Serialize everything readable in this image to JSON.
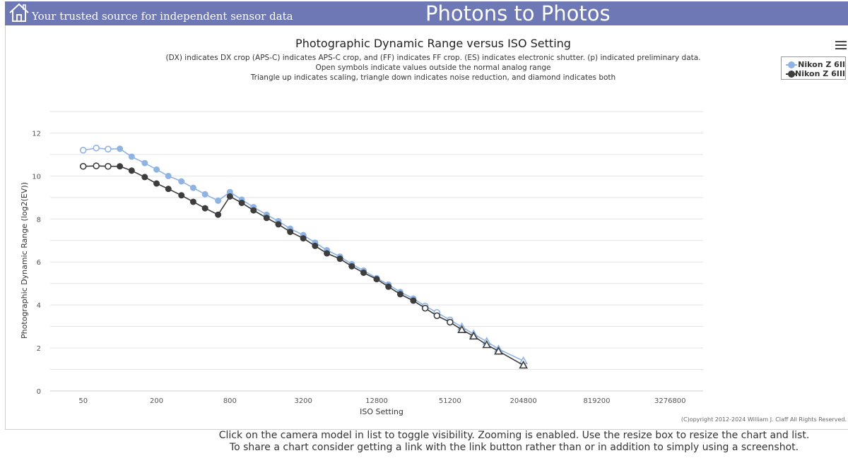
{
  "header": {
    "tagline": "Your trusted source for independent sensor data",
    "site_title": "Photons to Photos",
    "bg_color": "#6d78b4",
    "home_icon": "home-icon"
  },
  "chart_data": {
    "type": "line",
    "title": "Photographic Dynamic Range versus ISO Setting",
    "subtitle_lines": [
      "(DX) indicates DX crop (APS-C) indicates APS-C crop, and (FF) indicates FF crop. (ES) indicates electronic shutter. (p) indicated preliminary data.",
      "Open symbols indicate values outside the normal analog range",
      "Triangle up indicates scaling, triangle down indicates noise reduction, and diamond indicates both"
    ],
    "xlabel": "ISO Setting",
    "ylabel": "Photographic Dynamic Range (log2(EV))",
    "x_scale": "log2",
    "x_ticks": [
      50,
      200,
      800,
      3200,
      12800,
      51200,
      204800,
      819200,
      3276800
    ],
    "y_ticks": [
      0,
      2,
      4,
      6,
      8,
      10,
      12
    ],
    "ylim": [
      0,
      12
    ],
    "grid": true,
    "legend_position": "top-right",
    "series": [
      {
        "name": "Nikon Z 6II",
        "color": "#8fb4e3",
        "points": [
          {
            "x": 50,
            "y": 11.2,
            "marker": "open-circle"
          },
          {
            "x": 64,
            "y": 11.3,
            "marker": "open-circle"
          },
          {
            "x": 80,
            "y": 11.25,
            "marker": "open-circle"
          },
          {
            "x": 100,
            "y": 11.27,
            "marker": "circle"
          },
          {
            "x": 125,
            "y": 10.9,
            "marker": "circle"
          },
          {
            "x": 160,
            "y": 10.6,
            "marker": "circle"
          },
          {
            "x": 200,
            "y": 10.3,
            "marker": "circle"
          },
          {
            "x": 250,
            "y": 10.0,
            "marker": "circle"
          },
          {
            "x": 320,
            "y": 9.75,
            "marker": "circle"
          },
          {
            "x": 400,
            "y": 9.45,
            "marker": "circle"
          },
          {
            "x": 500,
            "y": 9.15,
            "marker": "circle"
          },
          {
            "x": 640,
            "y": 8.85,
            "marker": "circle"
          },
          {
            "x": 800,
            "y": 9.25,
            "marker": "circle"
          },
          {
            "x": 1000,
            "y": 8.9,
            "marker": "circle"
          },
          {
            "x": 1250,
            "y": 8.55,
            "marker": "circle"
          },
          {
            "x": 1600,
            "y": 8.2,
            "marker": "circle"
          },
          {
            "x": 2000,
            "y": 7.9,
            "marker": "circle"
          },
          {
            "x": 2500,
            "y": 7.55,
            "marker": "circle"
          },
          {
            "x": 3200,
            "y": 7.25,
            "marker": "circle"
          },
          {
            "x": 4000,
            "y": 6.9,
            "marker": "circle"
          },
          {
            "x": 5000,
            "y": 6.55,
            "marker": "circle"
          },
          {
            "x": 6400,
            "y": 6.25,
            "marker": "circle"
          },
          {
            "x": 8000,
            "y": 5.9,
            "marker": "circle"
          },
          {
            "x": 10000,
            "y": 5.6,
            "marker": "circle"
          },
          {
            "x": 12800,
            "y": 5.25,
            "marker": "circle"
          },
          {
            "x": 16000,
            "y": 4.95,
            "marker": "circle"
          },
          {
            "x": 20000,
            "y": 4.6,
            "marker": "circle"
          },
          {
            "x": 25600,
            "y": 4.3,
            "marker": "circle"
          },
          {
            "x": 32000,
            "y": 3.95,
            "marker": "open-circle"
          },
          {
            "x": 40000,
            "y": 3.65,
            "marker": "open-circle"
          },
          {
            "x": 51200,
            "y": 3.3,
            "marker": "open-circle"
          },
          {
            "x": 64000,
            "y": 2.98,
            "marker": "open-triangle"
          },
          {
            "x": 80000,
            "y": 2.65,
            "marker": "open-triangle"
          },
          {
            "x": 102400,
            "y": 2.3,
            "marker": "open-triangle"
          },
          {
            "x": 128000,
            "y": 1.95,
            "marker": "open-triangle"
          },
          {
            "x": 204800,
            "y": 1.4,
            "marker": "open-triangle"
          }
        ]
      },
      {
        "name": "Nikon Z 6III",
        "color": "#3d3d3d",
        "points": [
          {
            "x": 50,
            "y": 10.45,
            "marker": "open-circle"
          },
          {
            "x": 64,
            "y": 10.47,
            "marker": "open-circle"
          },
          {
            "x": 80,
            "y": 10.45,
            "marker": "open-circle"
          },
          {
            "x": 100,
            "y": 10.45,
            "marker": "circle"
          },
          {
            "x": 125,
            "y": 10.25,
            "marker": "circle"
          },
          {
            "x": 160,
            "y": 9.95,
            "marker": "circle"
          },
          {
            "x": 200,
            "y": 9.65,
            "marker": "circle"
          },
          {
            "x": 250,
            "y": 9.4,
            "marker": "circle"
          },
          {
            "x": 320,
            "y": 9.1,
            "marker": "circle"
          },
          {
            "x": 400,
            "y": 8.8,
            "marker": "circle"
          },
          {
            "x": 500,
            "y": 8.5,
            "marker": "circle"
          },
          {
            "x": 640,
            "y": 8.2,
            "marker": "circle"
          },
          {
            "x": 800,
            "y": 9.05,
            "marker": "circle"
          },
          {
            "x": 1000,
            "y": 8.75,
            "marker": "circle"
          },
          {
            "x": 1250,
            "y": 8.4,
            "marker": "circle"
          },
          {
            "x": 1600,
            "y": 8.05,
            "marker": "circle"
          },
          {
            "x": 2000,
            "y": 7.75,
            "marker": "circle"
          },
          {
            "x": 2500,
            "y": 7.4,
            "marker": "circle"
          },
          {
            "x": 3200,
            "y": 7.1,
            "marker": "circle"
          },
          {
            "x": 4000,
            "y": 6.75,
            "marker": "circle"
          },
          {
            "x": 5000,
            "y": 6.4,
            "marker": "circle"
          },
          {
            "x": 6400,
            "y": 6.15,
            "marker": "circle"
          },
          {
            "x": 8000,
            "y": 5.8,
            "marker": "circle"
          },
          {
            "x": 10000,
            "y": 5.5,
            "marker": "circle"
          },
          {
            "x": 12800,
            "y": 5.2,
            "marker": "circle"
          },
          {
            "x": 16000,
            "y": 4.85,
            "marker": "circle"
          },
          {
            "x": 20000,
            "y": 4.5,
            "marker": "circle"
          },
          {
            "x": 25600,
            "y": 4.2,
            "marker": "circle"
          },
          {
            "x": 32000,
            "y": 3.85,
            "marker": "open-circle"
          },
          {
            "x": 40000,
            "y": 3.5,
            "marker": "open-circle"
          },
          {
            "x": 51200,
            "y": 3.2,
            "marker": "open-circle"
          },
          {
            "x": 64000,
            "y": 2.85,
            "marker": "open-triangle"
          },
          {
            "x": 80000,
            "y": 2.55,
            "marker": "open-triangle"
          },
          {
            "x": 102400,
            "y": 2.15,
            "marker": "open-triangle"
          },
          {
            "x": 128000,
            "y": 1.85,
            "marker": "open-triangle"
          },
          {
            "x": 204800,
            "y": 1.2,
            "marker": "open-triangle"
          }
        ]
      }
    ],
    "copyright": "(C)opyright 2012-2024 William J. Claff All Rights Reserved."
  },
  "footer": {
    "line1": "Click on the camera model in list to toggle visibility. Zooming is enabled. Use the resize box to resize the chart and list.",
    "line2": "To share a chart consider getting a link with the link button rather than or in addition to simply using a screenshot."
  }
}
